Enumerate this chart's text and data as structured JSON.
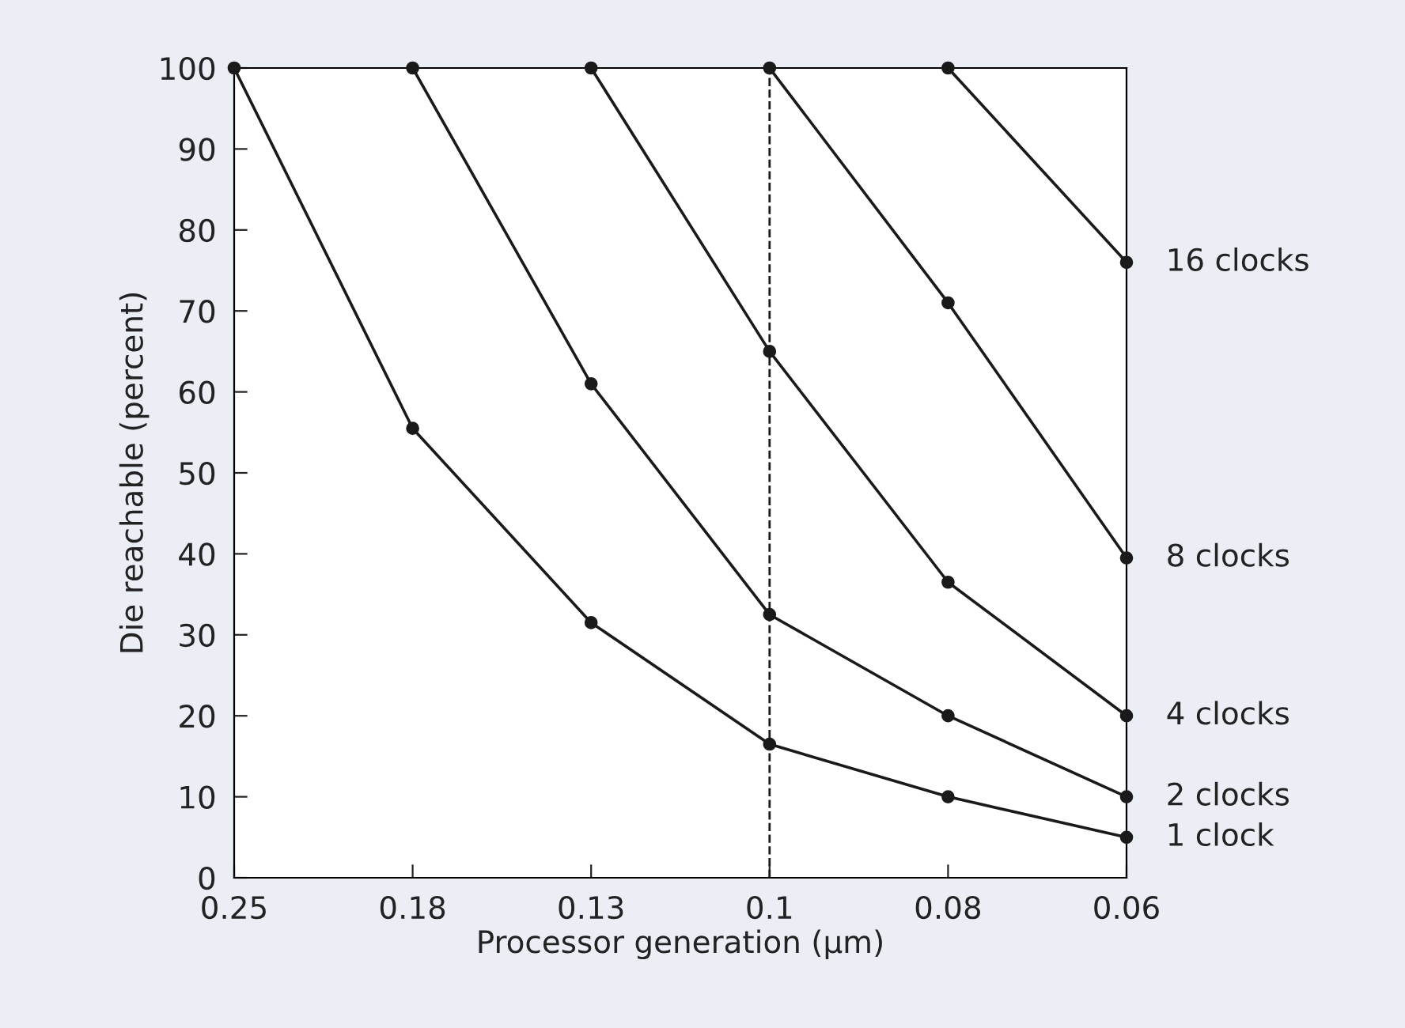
{
  "chart_data": {
    "type": "line",
    "xlabel": "Processor generation (µm)",
    "ylabel": "Die reachable (percent)",
    "categories": [
      "0.25",
      "0.18",
      "0.13",
      "0.1",
      "0.08",
      "0.06"
    ],
    "ylim": [
      0,
      100
    ],
    "yticks": [
      0,
      10,
      20,
      30,
      40,
      50,
      60,
      70,
      80,
      90,
      100
    ],
    "marker": "circle",
    "line_style": "solid",
    "grid": false,
    "legend": false,
    "series": [
      {
        "name": "1 clock",
        "color": "#1a1a1a",
        "values": [
          100,
          55.5,
          31.5,
          16.5,
          10,
          5
        ]
      },
      {
        "name": "2 clocks",
        "color": "#1a1a1a",
        "values": [
          null,
          100,
          61,
          32.5,
          20,
          10
        ]
      },
      {
        "name": "4 clocks",
        "color": "#1a1a1a",
        "values": [
          null,
          null,
          100,
          65,
          36.5,
          20
        ]
      },
      {
        "name": "8 clocks",
        "color": "#1a1a1a",
        "values": [
          null,
          null,
          null,
          100,
          71,
          39.5
        ]
      },
      {
        "name": "16 clocks",
        "color": "#1a1a1a",
        "values": [
          null,
          null,
          null,
          null,
          100,
          76
        ]
      }
    ],
    "ref_lines": [
      {
        "axis": "x",
        "value": "0.1",
        "line_style": "dashed",
        "color": "#1a1a1a"
      }
    ]
  }
}
